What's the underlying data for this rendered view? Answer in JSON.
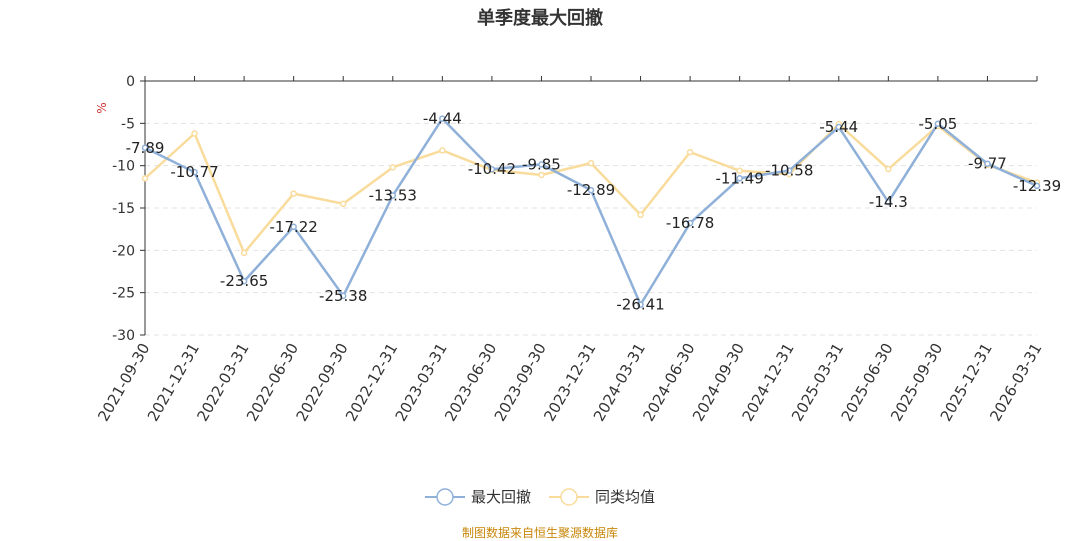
{
  "source_text": "制图数据来自恒生聚源数据库",
  "chart_data": {
    "type": "line",
    "title": "单季度最大回撤",
    "ylabel": "%",
    "ylim": [
      -30,
      0
    ],
    "yticks": [
      0,
      -5,
      -10,
      -15,
      -20,
      -25,
      -30
    ],
    "grid": true,
    "legend_position": "bottom",
    "categories": [
      "2021-09-30",
      "2021-12-31",
      "2022-03-31",
      "2022-06-30",
      "2022-09-30",
      "2022-12-31",
      "2023-03-31",
      "2023-06-30",
      "2023-09-30",
      "2023-12-31",
      "2024-03-31",
      "2024-06-30",
      "2024-09-30",
      "2024-12-31",
      "2025-03-31",
      "2025-06-30",
      "2025-09-30",
      "2025-12-31",
      "2026-03-31"
    ],
    "series": [
      {
        "name": "最大回撤",
        "color": "#8fb0d8",
        "show_labels": true,
        "values": [
          -7.89,
          -10.77,
          -23.65,
          -17.22,
          -25.38,
          -13.53,
          -4.44,
          -10.42,
          -9.85,
          -12.89,
          -26.41,
          -16.78,
          -11.49,
          -10.58,
          -5.44,
          -14.3,
          -5.05,
          -9.77,
          -12.39
        ]
      },
      {
        "name": "同类均值",
        "color": "#f9dc9c",
        "show_labels": false,
        "values": [
          -11.5,
          -6.2,
          -20.3,
          -13.3,
          -14.5,
          -10.2,
          -8.2,
          -10.5,
          -11.1,
          -9.7,
          -15.8,
          -8.4,
          -10.6,
          -11.0,
          -5.1,
          -10.4,
          -5.3,
          -9.9,
          -12.0
        ]
      }
    ]
  }
}
